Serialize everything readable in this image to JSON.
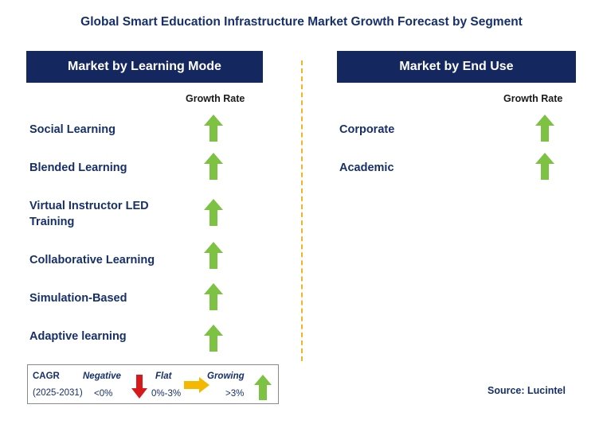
{
  "title": "Global Smart Education Infrastructure Market Growth Forecast by Segment",
  "left_panel": {
    "header": "Market by Learning Mode",
    "growth_rate_label": "Growth Rate",
    "items": [
      {
        "label": "Social Learning",
        "trend": "growing"
      },
      {
        "label": "Blended Learning",
        "trend": "growing"
      },
      {
        "label": "Virtual Instructor LED Training",
        "trend": "growing"
      },
      {
        "label": "Collaborative Learning",
        "trend": "growing"
      },
      {
        "label": "Simulation-Based",
        "trend": "growing"
      },
      {
        "label": "Adaptive learning",
        "trend": "growing"
      }
    ]
  },
  "right_panel": {
    "header": "Market by End Use",
    "growth_rate_label": "Growth Rate",
    "items": [
      {
        "label": "Corporate",
        "trend": "growing"
      },
      {
        "label": "Academic",
        "trend": "growing"
      }
    ]
  },
  "legend": {
    "cagr_label": "CAGR",
    "period": "(2025-2031)",
    "negative_label": "Negative",
    "negative_range": "<0%",
    "flat_label": "Flat",
    "flat_range": "0%-3%",
    "growing_label": "Growing",
    "growing_range": ">3%"
  },
  "source": "Source: Lucintel",
  "colors": {
    "header_bg": "#14275e",
    "text": "#17306b",
    "growing_arrow": "#7dc242",
    "negative_arrow": "#d7191c",
    "flat_arrow": "#f5b800",
    "divider": "#f2b420"
  }
}
